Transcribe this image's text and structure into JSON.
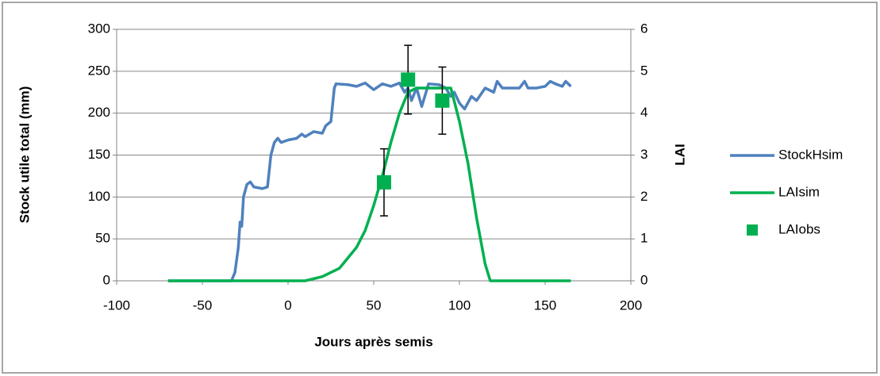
{
  "chart_data": {
    "type": "line",
    "x_label": "Jours après semis",
    "y_label": "Stock utile total (mm)",
    "y2_label": "LAI",
    "xlim": [
      -100,
      200
    ],
    "xticks": [
      -100,
      -50,
      0,
      50,
      100,
      150,
      200
    ],
    "ylim": [
      0,
      300
    ],
    "yticks": [
      0,
      50,
      100,
      150,
      200,
      250,
      300
    ],
    "y2lim": [
      0,
      6
    ],
    "y2ticks": [
      0,
      1,
      2,
      3,
      4,
      5,
      6
    ],
    "grid": true,
    "legend": "right",
    "series": [
      {
        "name": "StockHsim",
        "color": "#4f81bd",
        "kind": "line",
        "x": [
          -70,
          -33,
          -31,
          -29,
          -28,
          -27,
          -26,
          -24,
          -22,
          -20,
          -15,
          -12,
          -10,
          -8,
          -6,
          -4,
          0,
          5,
          8,
          10,
          15,
          20,
          22,
          25,
          27,
          28,
          35,
          40,
          45,
          50,
          55,
          60,
          65,
          68,
          70,
          72,
          75,
          78,
          82,
          88,
          92,
          95,
          97,
          100,
          103,
          107,
          110,
          115,
          120,
          122,
          125,
          130,
          135,
          138,
          140,
          145,
          150,
          153,
          156,
          160,
          162,
          165
        ],
        "values": [
          0,
          0,
          10,
          40,
          70,
          65,
          100,
          115,
          118,
          112,
          110,
          112,
          150,
          165,
          170,
          165,
          168,
          170,
          175,
          172,
          178,
          176,
          185,
          190,
          230,
          235,
          234,
          232,
          236,
          228,
          235,
          232,
          236,
          225,
          230,
          215,
          230,
          208,
          235,
          234,
          230,
          220,
          225,
          212,
          205,
          220,
          215,
          230,
          225,
          238,
          230,
          230,
          230,
          238,
          230,
          230,
          232,
          238,
          235,
          232,
          238,
          232
        ]
      },
      {
        "name": "LAIsim",
        "color": "#00b050",
        "kind": "line",
        "axis": "y2",
        "x": [
          -70,
          10,
          20,
          30,
          40,
          45,
          50,
          55,
          60,
          65,
          70,
          75,
          95,
          100,
          105,
          110,
          115,
          118,
          165
        ],
        "values": [
          0,
          0,
          0.1,
          0.3,
          0.8,
          1.2,
          1.8,
          2.5,
          3.3,
          4.0,
          4.5,
          4.6,
          4.6,
          3.8,
          2.8,
          1.5,
          0.4,
          0,
          0
        ]
      },
      {
        "name": "LAIobs",
        "color": "#00b050",
        "kind": "marker",
        "axis": "y2",
        "x": [
          56,
          70,
          90
        ],
        "values": [
          2.35,
          4.8,
          4.3
        ],
        "errors": [
          0.8,
          0.82,
          0.8
        ]
      }
    ]
  }
}
